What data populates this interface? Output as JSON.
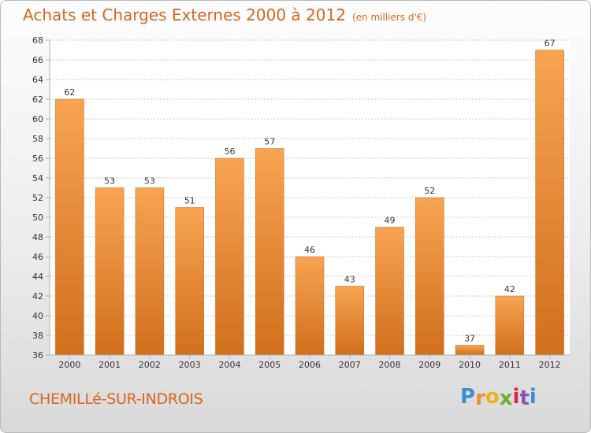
{
  "header": {
    "title": "Achats et Charges Externes 2000 à 2012",
    "subtitle": "(en milliers d'€)"
  },
  "footer": {
    "commune": "CHEMILLé-SUR-INDROIS",
    "logo_letters": [
      "P",
      "r",
      "o",
      "x",
      "i",
      "t",
      "i"
    ],
    "logo_colors": [
      "#3a8fd4",
      "#e7932a",
      "#f0b21c",
      "#69b02f",
      "#d7263d",
      "#8c55b4",
      "#3a8fd4"
    ]
  },
  "colors": {
    "bar_light": "#f7a452",
    "bar_dark": "#d16f1c",
    "accent": "#d8651e"
  },
  "chart_data": {
    "type": "bar",
    "categories": [
      "2000",
      "2001",
      "2002",
      "2003",
      "2004",
      "2005",
      "2006",
      "2007",
      "2008",
      "2009",
      "2010",
      "2011",
      "2012"
    ],
    "values": [
      62,
      53,
      53,
      51,
      56,
      57,
      46,
      43,
      49,
      52,
      37,
      42,
      67
    ],
    "ylim": [
      36,
      68
    ],
    "yticks": [
      36,
      38,
      40,
      42,
      44,
      46,
      48,
      50,
      52,
      54,
      56,
      58,
      60,
      62,
      64,
      66,
      68
    ],
    "grid": true,
    "data_labels": true
  }
}
